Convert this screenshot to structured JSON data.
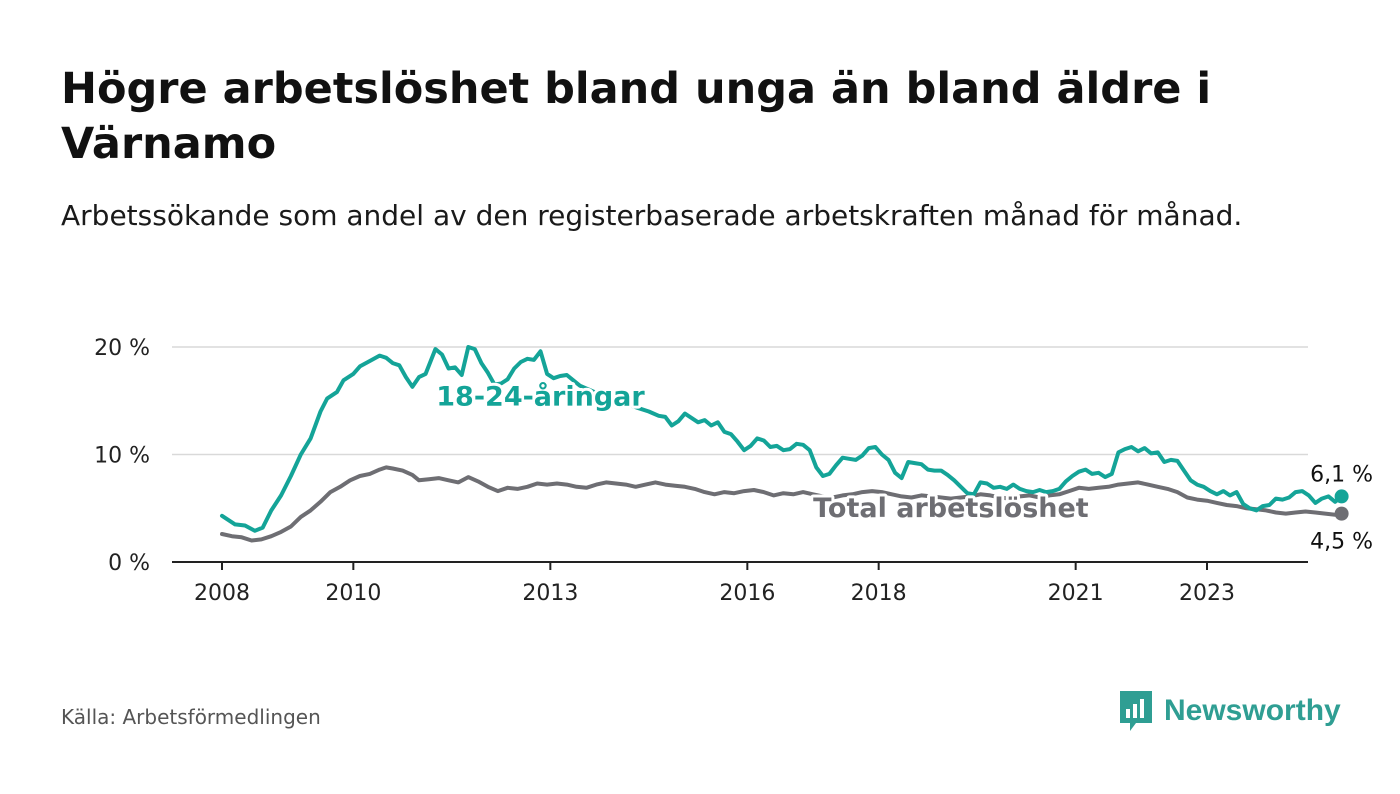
{
  "title": "Högre arbetslöshet bland unga än bland äldre i Värnamo",
  "subtitle": "Arbetssökande som andel av den registerbaserade arbetskraften månad för månad.",
  "source": "Källa: Arbetsförmedlingen",
  "brand": "Newsworthy",
  "colors": {
    "youth": "#14a498",
    "total": "#6e6e73",
    "grid": "#d9d9d9",
    "axis": "#222222",
    "brand": "#2f9e93"
  },
  "chart_data": {
    "type": "line",
    "title": "Högre arbetslöshet bland unga än bland äldre i Värnamo",
    "xlabel": "",
    "ylabel": "",
    "xlim": [
      2007.25,
      2024.8
    ],
    "ylim": [
      0,
      20
    ],
    "x_ticks": [
      2008,
      2010,
      2013,
      2016,
      2018,
      2021,
      2023
    ],
    "x_tick_labels": [
      "2008",
      "2010",
      "2013",
      "2016",
      "2018",
      "2021",
      "2023"
    ],
    "y_ticks": [
      0,
      10,
      20
    ],
    "y_tick_labels": [
      "0 %",
      "10 %",
      "20 %"
    ],
    "grid": true,
    "end_labels": {
      "youth": "6,1 %",
      "total": "4,5 %"
    },
    "series": [
      {
        "name": "18-24-åringar",
        "key": "youth",
        "points": [
          [
            2008.0,
            4.3
          ],
          [
            2008.2,
            3.5
          ],
          [
            2008.35,
            3.4
          ],
          [
            2008.5,
            2.9
          ],
          [
            2008.62,
            3.2
          ],
          [
            2008.75,
            4.8
          ],
          [
            2008.9,
            6.2
          ],
          [
            2009.05,
            8.0
          ],
          [
            2009.2,
            10.0
          ],
          [
            2009.35,
            11.5
          ],
          [
            2009.5,
            14.0
          ],
          [
            2009.6,
            15.2
          ],
          [
            2009.75,
            15.8
          ],
          [
            2009.85,
            16.9
          ],
          [
            2010.0,
            17.5
          ],
          [
            2010.1,
            18.2
          ],
          [
            2010.25,
            18.7
          ],
          [
            2010.4,
            19.2
          ],
          [
            2010.5,
            19.0
          ],
          [
            2010.6,
            18.5
          ],
          [
            2010.7,
            18.3
          ],
          [
            2010.8,
            17.2
          ],
          [
            2010.9,
            16.3
          ],
          [
            2011.0,
            17.2
          ],
          [
            2011.1,
            17.5
          ],
          [
            2011.25,
            19.8
          ],
          [
            2011.35,
            19.3
          ],
          [
            2011.45,
            18.0
          ],
          [
            2011.55,
            18.1
          ],
          [
            2011.65,
            17.4
          ],
          [
            2011.75,
            20.0
          ],
          [
            2011.85,
            19.8
          ],
          [
            2011.95,
            18.5
          ],
          [
            2012.05,
            17.6
          ],
          [
            2012.15,
            16.5
          ],
          [
            2012.25,
            16.6
          ],
          [
            2012.35,
            17.0
          ],
          [
            2012.45,
            18.0
          ],
          [
            2012.55,
            18.6
          ],
          [
            2012.65,
            18.9
          ],
          [
            2012.75,
            18.8
          ],
          [
            2012.85,
            19.6
          ],
          [
            2012.95,
            17.5
          ],
          [
            2013.05,
            17.1
          ],
          [
            2013.15,
            17.3
          ],
          [
            2013.25,
            17.4
          ],
          [
            2013.35,
            16.9
          ],
          [
            2013.45,
            16.4
          ],
          [
            2013.6,
            16.0
          ],
          [
            2013.75,
            15.6
          ],
          [
            2013.9,
            15.3
          ],
          [
            2014.05,
            15.0
          ],
          [
            2014.2,
            14.6
          ],
          [
            2014.35,
            14.3
          ],
          [
            2014.5,
            14.0
          ],
          [
            2014.65,
            13.6
          ],
          [
            2014.75,
            13.5
          ],
          [
            2014.85,
            12.7
          ],
          [
            2014.95,
            13.1
          ],
          [
            2015.05,
            13.8
          ],
          [
            2015.15,
            13.4
          ],
          [
            2015.25,
            13.0
          ],
          [
            2015.35,
            13.2
          ],
          [
            2015.45,
            12.7
          ],
          [
            2015.55,
            13.0
          ],
          [
            2015.65,
            12.1
          ],
          [
            2015.75,
            11.9
          ],
          [
            2015.85,
            11.2
          ],
          [
            2015.95,
            10.4
          ],
          [
            2016.05,
            10.8
          ],
          [
            2016.15,
            11.5
          ],
          [
            2016.25,
            11.3
          ],
          [
            2016.35,
            10.7
          ],
          [
            2016.45,
            10.8
          ],
          [
            2016.55,
            10.4
          ],
          [
            2016.65,
            10.5
          ],
          [
            2016.75,
            11.0
          ],
          [
            2016.85,
            10.9
          ],
          [
            2016.95,
            10.4
          ],
          [
            2017.05,
            8.8
          ],
          [
            2017.15,
            8.0
          ],
          [
            2017.25,
            8.2
          ],
          [
            2017.35,
            9.0
          ],
          [
            2017.45,
            9.7
          ],
          [
            2017.55,
            9.6
          ],
          [
            2017.65,
            9.5
          ],
          [
            2017.75,
            9.9
          ],
          [
            2017.85,
            10.6
          ],
          [
            2017.95,
            10.7
          ],
          [
            2018.05,
            10.0
          ],
          [
            2018.15,
            9.5
          ],
          [
            2018.25,
            8.3
          ],
          [
            2018.35,
            7.8
          ],
          [
            2018.45,
            9.3
          ],
          [
            2018.55,
            9.2
          ],
          [
            2018.65,
            9.1
          ],
          [
            2018.75,
            8.6
          ],
          [
            2018.85,
            8.5
          ],
          [
            2018.95,
            8.5
          ],
          [
            2019.05,
            8.1
          ],
          [
            2019.15,
            7.6
          ],
          [
            2019.25,
            7.0
          ],
          [
            2019.35,
            6.4
          ],
          [
            2019.45,
            6.3
          ],
          [
            2019.55,
            7.4
          ],
          [
            2019.65,
            7.3
          ],
          [
            2019.75,
            6.9
          ],
          [
            2019.85,
            7.0
          ],
          [
            2019.95,
            6.8
          ],
          [
            2020.05,
            7.2
          ],
          [
            2020.15,
            6.8
          ],
          [
            2020.25,
            6.6
          ],
          [
            2020.35,
            6.5
          ],
          [
            2020.45,
            6.7
          ],
          [
            2020.55,
            6.5
          ],
          [
            2020.65,
            6.6
          ],
          [
            2020.75,
            6.8
          ],
          [
            2020.85,
            7.5
          ],
          [
            2020.95,
            8.0
          ],
          [
            2021.05,
            8.4
          ],
          [
            2021.15,
            8.6
          ],
          [
            2021.25,
            8.2
          ],
          [
            2021.35,
            8.3
          ],
          [
            2021.45,
            7.9
          ],
          [
            2021.55,
            8.2
          ],
          [
            2021.65,
            10.2
          ],
          [
            2021.75,
            10.5
          ],
          [
            2021.85,
            10.7
          ],
          [
            2021.95,
            10.3
          ],
          [
            2022.05,
            10.6
          ],
          [
            2022.15,
            10.1
          ],
          [
            2022.25,
            10.2
          ],
          [
            2022.35,
            9.3
          ],
          [
            2022.45,
            9.5
          ],
          [
            2022.55,
            9.4
          ],
          [
            2022.65,
            8.5
          ],
          [
            2022.75,
            7.6
          ],
          [
            2022.85,
            7.2
          ],
          [
            2022.95,
            7.0
          ],
          [
            2023.05,
            6.6
          ],
          [
            2023.15,
            6.3
          ],
          [
            2023.25,
            6.6
          ],
          [
            2023.35,
            6.2
          ],
          [
            2023.45,
            6.5
          ],
          [
            2023.55,
            5.4
          ],
          [
            2023.65,
            5.0
          ],
          [
            2023.75,
            4.8
          ],
          [
            2023.85,
            5.2
          ],
          [
            2023.95,
            5.3
          ],
          [
            2024.05,
            5.9
          ],
          [
            2024.15,
            5.8
          ],
          [
            2024.25,
            6.0
          ],
          [
            2024.35,
            6.5
          ],
          [
            2024.45,
            6.6
          ],
          [
            2024.55,
            6.2
          ],
          [
            2024.65,
            5.5
          ],
          [
            2024.75,
            5.9
          ],
          [
            2024.85,
            6.1
          ],
          [
            2024.95,
            5.6
          ],
          [
            2025.05,
            6.1
          ]
        ]
      },
      {
        "name": "Total arbetslöshet",
        "key": "total",
        "points": [
          [
            2008.0,
            2.6
          ],
          [
            2008.15,
            2.4
          ],
          [
            2008.3,
            2.3
          ],
          [
            2008.45,
            2.0
          ],
          [
            2008.6,
            2.1
          ],
          [
            2008.75,
            2.4
          ],
          [
            2008.9,
            2.8
          ],
          [
            2009.05,
            3.3
          ],
          [
            2009.2,
            4.2
          ],
          [
            2009.35,
            4.8
          ],
          [
            2009.5,
            5.6
          ],
          [
            2009.65,
            6.5
          ],
          [
            2009.8,
            7.0
          ],
          [
            2009.95,
            7.6
          ],
          [
            2010.1,
            8.0
          ],
          [
            2010.25,
            8.2
          ],
          [
            2010.4,
            8.6
          ],
          [
            2010.5,
            8.8
          ],
          [
            2010.6,
            8.7
          ],
          [
            2010.75,
            8.5
          ],
          [
            2010.9,
            8.1
          ],
          [
            2011.0,
            7.6
          ],
          [
            2011.15,
            7.7
          ],
          [
            2011.3,
            7.8
          ],
          [
            2011.45,
            7.6
          ],
          [
            2011.6,
            7.4
          ],
          [
            2011.75,
            7.9
          ],
          [
            2011.9,
            7.5
          ],
          [
            2012.05,
            7.0
          ],
          [
            2012.2,
            6.6
          ],
          [
            2012.35,
            6.9
          ],
          [
            2012.5,
            6.8
          ],
          [
            2012.65,
            7.0
          ],
          [
            2012.8,
            7.3
          ],
          [
            2012.95,
            7.2
          ],
          [
            2013.1,
            7.3
          ],
          [
            2013.25,
            7.2
          ],
          [
            2013.4,
            7.0
          ],
          [
            2013.55,
            6.9
          ],
          [
            2013.7,
            7.2
          ],
          [
            2013.85,
            7.4
          ],
          [
            2014.0,
            7.3
          ],
          [
            2014.15,
            7.2
          ],
          [
            2014.3,
            7.0
          ],
          [
            2014.45,
            7.2
          ],
          [
            2014.6,
            7.4
          ],
          [
            2014.75,
            7.2
          ],
          [
            2014.9,
            7.1
          ],
          [
            2015.05,
            7.0
          ],
          [
            2015.2,
            6.8
          ],
          [
            2015.35,
            6.5
          ],
          [
            2015.5,
            6.3
          ],
          [
            2015.65,
            6.5
          ],
          [
            2015.8,
            6.4
          ],
          [
            2015.95,
            6.6
          ],
          [
            2016.1,
            6.7
          ],
          [
            2016.25,
            6.5
          ],
          [
            2016.4,
            6.2
          ],
          [
            2016.55,
            6.4
          ],
          [
            2016.7,
            6.3
          ],
          [
            2016.85,
            6.5
          ],
          [
            2017.0,
            6.3
          ],
          [
            2017.15,
            6.1
          ],
          [
            2017.3,
            6.0
          ],
          [
            2017.45,
            6.2
          ],
          [
            2017.6,
            6.3
          ],
          [
            2017.75,
            6.5
          ],
          [
            2017.9,
            6.6
          ],
          [
            2018.05,
            6.5
          ],
          [
            2018.2,
            6.3
          ],
          [
            2018.35,
            6.1
          ],
          [
            2018.5,
            6.0
          ],
          [
            2018.65,
            6.2
          ],
          [
            2018.8,
            6.1
          ],
          [
            2018.95,
            6.0
          ],
          [
            2019.1,
            5.9
          ],
          [
            2019.25,
            6.0
          ],
          [
            2019.4,
            6.1
          ],
          [
            2019.55,
            6.3
          ],
          [
            2019.7,
            6.2
          ],
          [
            2019.85,
            6.0
          ],
          [
            2020.0,
            5.9
          ],
          [
            2020.15,
            6.1
          ],
          [
            2020.3,
            6.2
          ],
          [
            2020.45,
            6.0
          ],
          [
            2020.6,
            6.2
          ],
          [
            2020.75,
            6.3
          ],
          [
            2020.9,
            6.6
          ],
          [
            2021.05,
            6.9
          ],
          [
            2021.2,
            6.8
          ],
          [
            2021.35,
            6.9
          ],
          [
            2021.5,
            7.0
          ],
          [
            2021.65,
            7.2
          ],
          [
            2021.8,
            7.3
          ],
          [
            2021.95,
            7.4
          ],
          [
            2022.1,
            7.2
          ],
          [
            2022.25,
            7.0
          ],
          [
            2022.4,
            6.8
          ],
          [
            2022.55,
            6.5
          ],
          [
            2022.7,
            6.0
          ],
          [
            2022.85,
            5.8
          ],
          [
            2023.0,
            5.7
          ],
          [
            2023.15,
            5.5
          ],
          [
            2023.3,
            5.3
          ],
          [
            2023.45,
            5.2
          ],
          [
            2023.6,
            5.0
          ],
          [
            2023.75,
            4.9
          ],
          [
            2023.9,
            4.8
          ],
          [
            2024.05,
            4.6
          ],
          [
            2024.2,
            4.5
          ],
          [
            2024.35,
            4.6
          ],
          [
            2024.5,
            4.7
          ],
          [
            2024.65,
            4.6
          ],
          [
            2024.8,
            4.5
          ],
          [
            2024.95,
            4.4
          ],
          [
            2025.05,
            4.5
          ]
        ]
      }
    ],
    "annotations": [
      {
        "text": "18-24-åringar",
        "series": "youth",
        "x": 2012.85,
        "y": 15.5
      },
      {
        "text": "Total arbetslöshet",
        "series": "total",
        "x": 2019.1,
        "y": 5.1
      }
    ]
  }
}
